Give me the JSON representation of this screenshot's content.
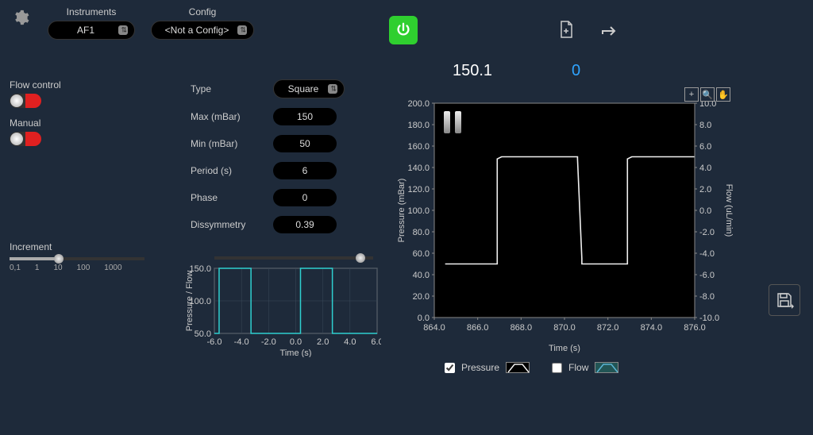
{
  "colors": {
    "bg": "#1e2a3a",
    "panel_text": "#cccccc",
    "power_green": "#2fcf2f",
    "toggle_red": "#e02020",
    "cyan_line": "#2fd0d0",
    "readout_blue": "#2fa4ff",
    "plot_bg": "#000000",
    "pressure_line": "#f0f0f0"
  },
  "header": {
    "instruments_label": "Instruments",
    "instrument_selected": "AF1",
    "config_label": "Config",
    "config_selected": "<Not a Config>"
  },
  "left": {
    "flow_control_label": "Flow control",
    "flow_control_on": false,
    "manual_label": "Manual",
    "manual_on": false,
    "increment_label": "Increment",
    "increment_ticks": [
      "0,1",
      "1",
      "10",
      "100",
      "1000"
    ],
    "increment_value": 10
  },
  "waveform": {
    "type_label": "Type",
    "type_value": "Square",
    "params": [
      {
        "label": "Max (mBar)",
        "value": "150"
      },
      {
        "label": "Min (mBar)",
        "value": "50"
      },
      {
        "label": "Period (s)",
        "value": "6"
      },
      {
        "label": "Phase",
        "value": "0"
      },
      {
        "label": "Dissymmetry",
        "value": "0.39"
      }
    ]
  },
  "preview_chart": {
    "type": "line",
    "xlabel": "Time (s)",
    "ylabel": "Pressure / Flow",
    "xlim": [
      -6,
      6
    ],
    "xtick_step": 2,
    "ylim": [
      50,
      150
    ],
    "ytick_step": 50,
    "line_color": "#2fd0d0",
    "bg": "#1e2a3a",
    "series": {
      "x": [
        -6,
        -5.65,
        -5.65,
        -3.3,
        -3.3,
        0.35,
        0.35,
        2.7,
        2.7,
        6
      ],
      "y": [
        50,
        50,
        150,
        150,
        50,
        50,
        150,
        150,
        50,
        50
      ]
    }
  },
  "readouts": {
    "pressure": "150.1",
    "flow": "0"
  },
  "main_chart": {
    "type": "line",
    "xlabel": "Time (s)",
    "left_ylabel": "Pressure (mBar)",
    "right_ylabel": "Flow (uL/min)",
    "xlim": [
      864,
      876
    ],
    "xtick_step": 2,
    "ylim_left": [
      0,
      200
    ],
    "ytick_step_left": 20,
    "ylim_right": [
      -10,
      10
    ],
    "ytick_step_right": 2,
    "bg": "#000000",
    "grid_color": "none",
    "pressure_series": {
      "color": "#f0f0f0",
      "x": [
        864.5,
        866.9,
        866.9,
        867.1,
        870.6,
        870.6,
        870.8,
        870.8,
        872.9,
        872.9,
        873.1,
        876
      ],
      "y": [
        50,
        50,
        148,
        150,
        150,
        148,
        55,
        50,
        50,
        148,
        150,
        150
      ]
    },
    "tools": [
      "crosshair",
      "zoom",
      "pan"
    ]
  },
  "legend": {
    "pressure_label": "Pressure",
    "pressure_checked": true,
    "flow_label": "Flow",
    "flow_checked": false
  }
}
